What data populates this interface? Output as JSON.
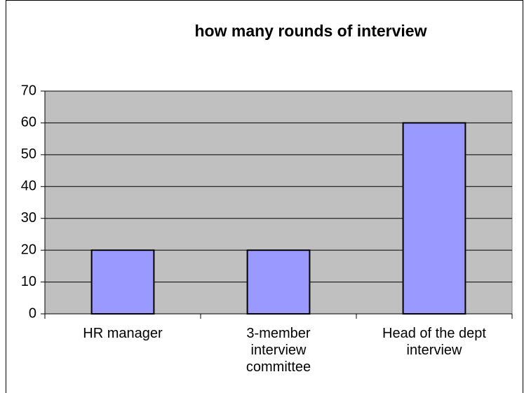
{
  "chart_data": {
    "type": "bar",
    "title": "how many rounds of interview",
    "categories": [
      "HR manager",
      "3-member interview committee",
      "Head of the dept interview"
    ],
    "values": [
      20,
      20,
      60
    ],
    "color": "#9999ff",
    "background": "#c0c0c0",
    "ylim": [
      0,
      70
    ],
    "yticks": [
      0,
      10,
      20,
      30,
      40,
      50,
      60,
      70
    ],
    "grid": true
  }
}
